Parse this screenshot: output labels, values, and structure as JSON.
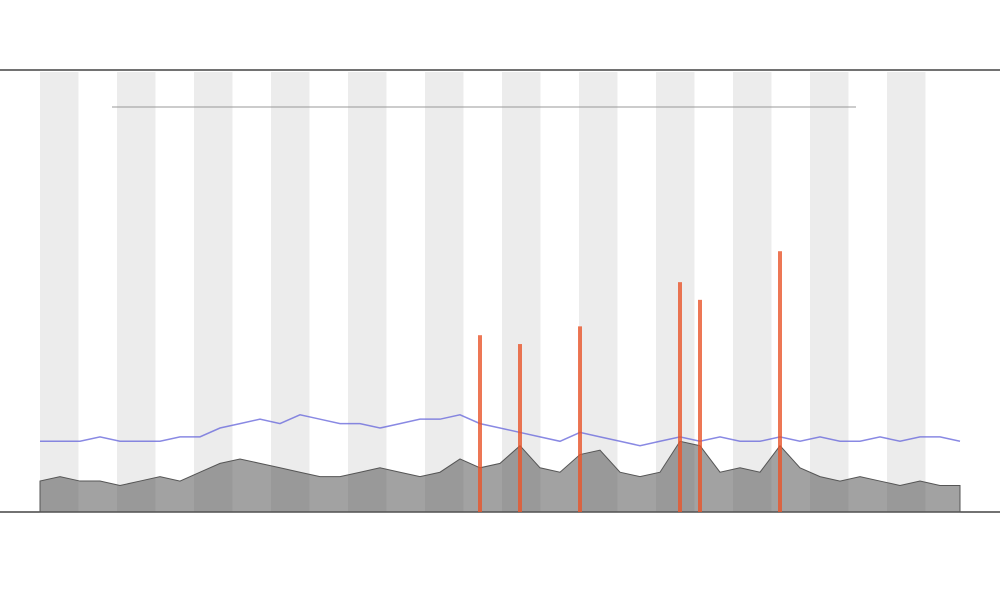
{
  "chart_data": {
    "type": "line",
    "x": [
      0,
      1,
      2,
      3,
      4,
      5,
      6,
      7,
      8,
      9,
      10,
      11,
      12,
      13,
      14,
      15,
      16,
      17,
      18,
      19,
      20,
      21,
      22,
      23,
      24,
      25,
      26,
      27,
      28,
      29,
      30,
      31,
      32,
      33,
      34,
      35,
      36,
      37,
      38,
      39,
      40,
      41,
      42,
      43,
      44,
      45,
      46
    ],
    "xlim": [
      0,
      46
    ],
    "ylim": [
      0,
      100
    ],
    "band_shading": true,
    "series": [
      {
        "type": "area",
        "color": "#555555",
        "values": [
          7,
          8,
          7,
          7,
          6,
          7,
          8,
          7,
          9,
          11,
          12,
          11,
          10,
          9,
          8,
          8,
          9,
          10,
          9,
          8,
          9,
          12,
          10,
          11,
          15,
          10,
          9,
          13,
          14,
          9,
          8,
          9,
          16,
          15,
          9,
          10,
          9,
          15,
          10,
          8,
          7,
          8,
          7,
          6,
          7,
          6,
          6
        ]
      },
      {
        "type": "line",
        "color": "#6b6bdc",
        "values": [
          16,
          16,
          16,
          17,
          16,
          16,
          16,
          17,
          17,
          19,
          20,
          21,
          20,
          22,
          21,
          20,
          20,
          19,
          20,
          21,
          21,
          22,
          20,
          19,
          18,
          17,
          16,
          18,
          17,
          16,
          15,
          16,
          17,
          16,
          17,
          16,
          16,
          17,
          16,
          17,
          16,
          16,
          17,
          16,
          17,
          17,
          16
        ]
      },
      {
        "type": "bar",
        "color": "#e8552a",
        "values": [
          null,
          null,
          null,
          null,
          null,
          null,
          null,
          null,
          null,
          null,
          null,
          null,
          null,
          null,
          null,
          null,
          null,
          null,
          null,
          null,
          null,
          null,
          40,
          null,
          38,
          null,
          null,
          42,
          null,
          null,
          null,
          null,
          52,
          48,
          null,
          null,
          null,
          59,
          null,
          null,
          null,
          null,
          null,
          null,
          null,
          null,
          null
        ]
      }
    ]
  }
}
